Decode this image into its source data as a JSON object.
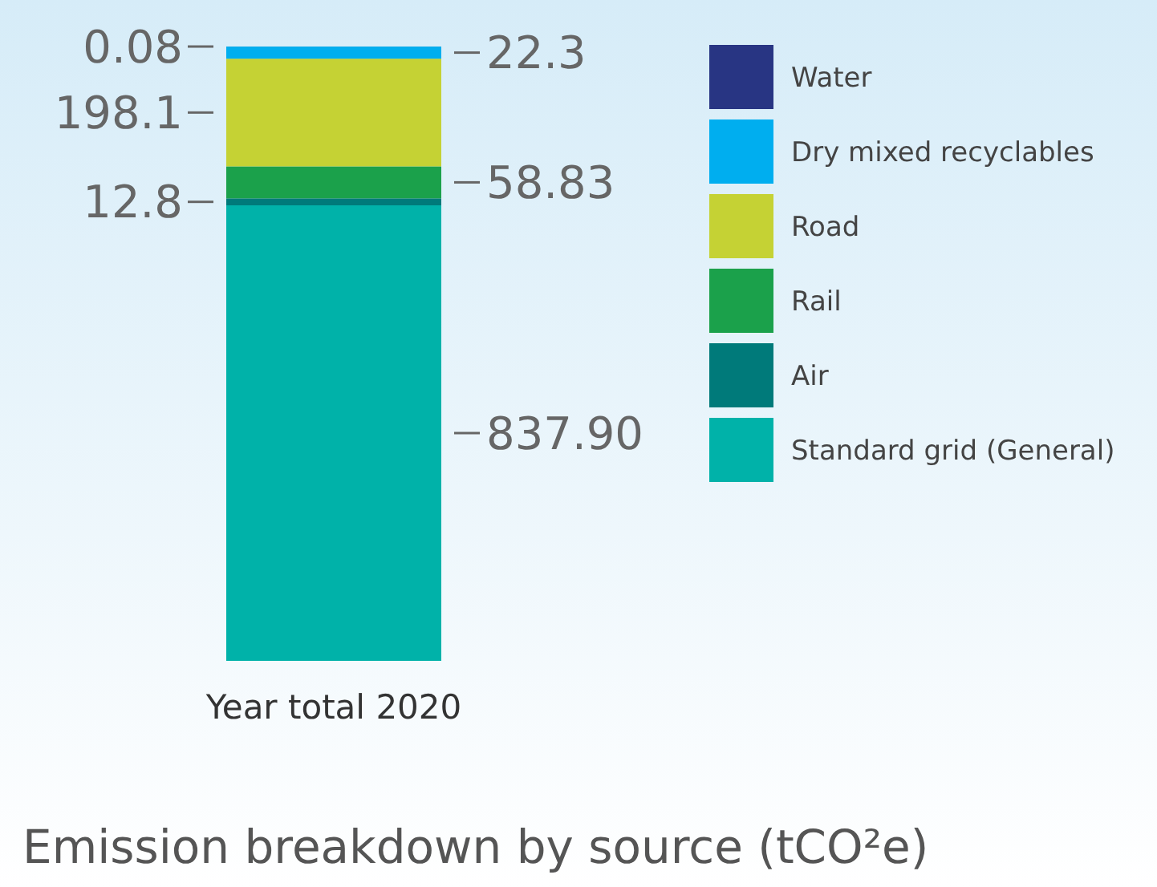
{
  "chart_data": {
    "type": "bar",
    "stacked": true,
    "title": "Emission breakdown by source (tCO²e)",
    "categories": [
      "Year total 2020"
    ],
    "legend": "right",
    "series": [
      {
        "name": "Standard grid (General)",
        "color": "#00b2a9",
        "values": [
          837.9
        ],
        "value_labels": [
          "837.90"
        ]
      },
      {
        "name": "Air",
        "color": "#007a7a",
        "values": [
          12.8
        ],
        "value_labels": [
          "12.8"
        ]
      },
      {
        "name": "Rail",
        "color": "#1ba14b",
        "values": [
          58.83
        ],
        "value_labels": [
          "58.83"
        ]
      },
      {
        "name": "Road",
        "color": "#c5d234",
        "values": [
          198.1
        ],
        "value_labels": [
          "198.1"
        ]
      },
      {
        "name": "Dry mixed recyclables",
        "color": "#00aeef",
        "values": [
          22.3
        ],
        "value_labels": [
          "22.3"
        ]
      },
      {
        "name": "Water",
        "color": "#283583",
        "values": [
          0.08
        ],
        "value_labels": [
          "0.08"
        ]
      }
    ]
  }
}
